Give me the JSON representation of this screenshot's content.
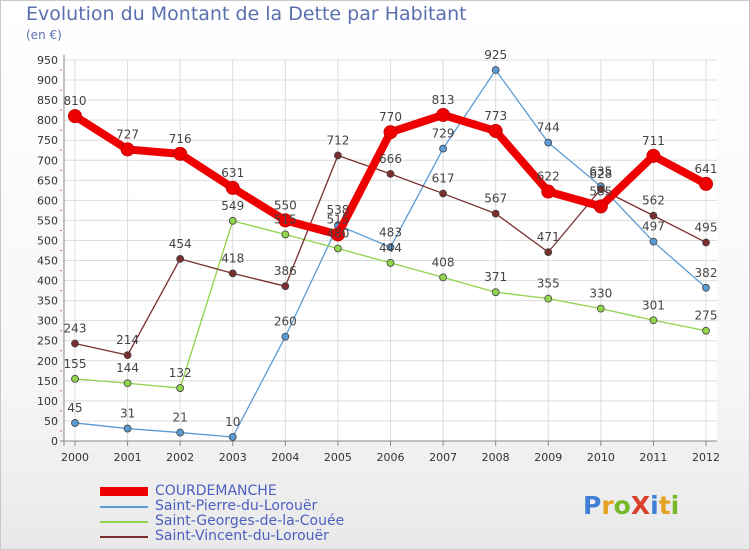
{
  "title": "Evolution du Montant de la Dette par Habitant",
  "unit_label": "(en €)",
  "logo": {
    "text": "ProXiti",
    "letters": [
      {
        "ch": "P",
        "color": "#3f7fd6"
      },
      {
        "ch": "r",
        "color": "#e5a21e"
      },
      {
        "ch": "o",
        "color": "#76b82a"
      },
      {
        "ch": "X",
        "color": "#d8402a"
      },
      {
        "ch": "i",
        "color": "#3f7fd6"
      },
      {
        "ch": "t",
        "color": "#e5a21e"
      },
      {
        "ch": "i",
        "color": "#76b82a"
      }
    ]
  },
  "chart_data": {
    "type": "line",
    "title": "Evolution du Montant de la Dette par Habitant",
    "ylabel": "(en €)",
    "xlabel": "",
    "x": [
      "2000",
      "2001",
      "2002",
      "2003",
      "2004",
      "2005",
      "2006",
      "2007",
      "2008",
      "2009",
      "2010",
      "2011",
      "2012"
    ],
    "ylim": [
      0,
      950
    ],
    "yticks": [
      0,
      50,
      100,
      150,
      200,
      250,
      300,
      350,
      400,
      450,
      500,
      550,
      600,
      650,
      700,
      750,
      800,
      850,
      900,
      950
    ],
    "grid": true,
    "legend_position": "bottom-left",
    "series": [
      {
        "name": "COURDEMANCHE",
        "color": "#ee0000",
        "values": [
          810,
          727,
          716,
          631,
          550,
          515,
          770,
          813,
          773,
          622,
          585,
          711,
          641
        ],
        "labels": [
          "810",
          "727",
          "716",
          "631",
          "550",
          "515",
          "770",
          "813",
          "773",
          "622",
          "585",
          "711",
          "641"
        ]
      },
      {
        "name": "Saint-Pierre-du-Lorouër",
        "color": "#5b9bd5",
        "values": [
          45,
          31,
          21,
          10,
          260,
          538,
          483,
          729,
          925,
          744,
          635,
          497,
          382
        ],
        "labels": [
          "45",
          "31",
          "21",
          "10",
          "260",
          "538",
          "483",
          "729",
          "925",
          "744",
          "635",
          "497",
          "382"
        ]
      },
      {
        "name": "Saint-Georges-de-la-Couée",
        "color": "#8fd44a",
        "values": [
          155,
          144,
          132,
          549,
          515,
          480,
          444,
          408,
          371,
          355,
          330,
          301,
          275
        ],
        "labels": [
          "155",
          "144",
          "132",
          "549",
          "515",
          "480",
          "444",
          "408",
          "371",
          "355",
          "330",
          "301",
          "275"
        ]
      },
      {
        "name": "Saint-Vincent-du-Lorouër",
        "color": "#7a2e2e",
        "values": [
          243,
          214,
          454,
          418,
          386,
          712,
          666,
          617,
          567,
          471,
          628,
          562,
          495
        ],
        "labels": [
          "243",
          "214",
          "454",
          "418",
          "386",
          "712",
          "666",
          "617",
          "567",
          "471",
          "628",
          "562",
          "495"
        ]
      }
    ]
  }
}
